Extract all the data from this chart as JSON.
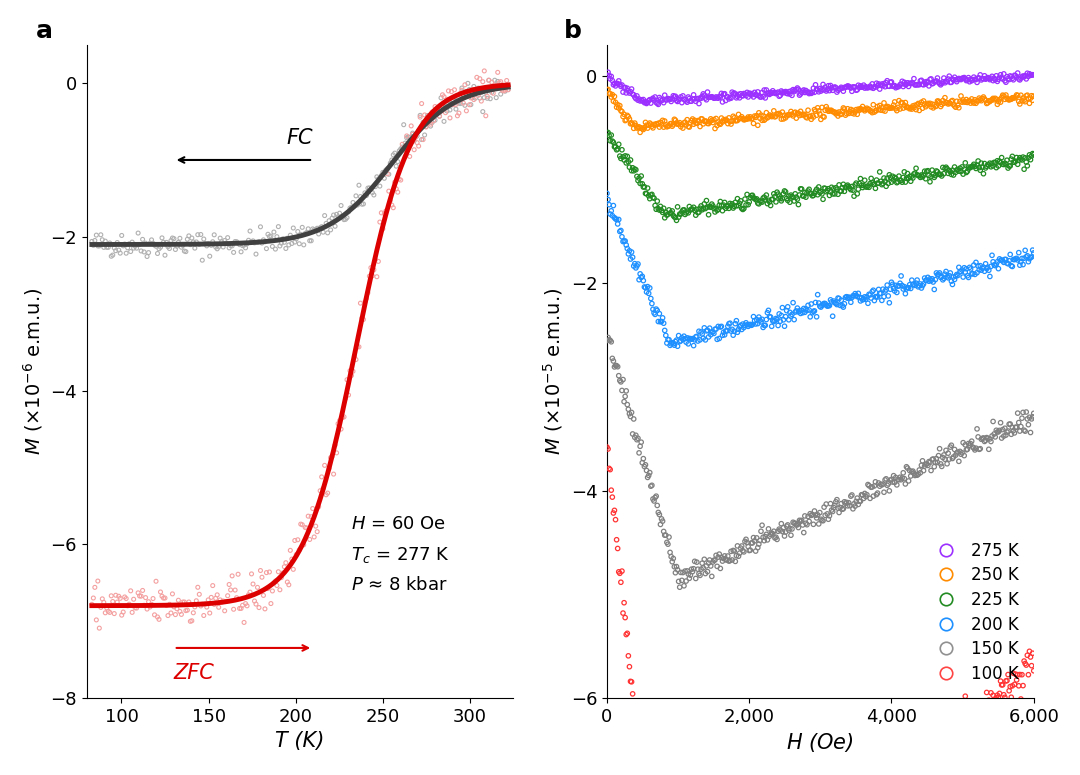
{
  "panel_a": {
    "title": "a",
    "xlabel": "T (K)",
    "ylabel": "M (×10⁻⁶ e.m.u.)",
    "xlim": [
      80,
      325
    ],
    "ylim": [
      -8,
      0.5
    ],
    "yticks": [
      0,
      -2,
      -4,
      -6,
      -8
    ],
    "xticks": [
      100,
      150,
      200,
      250,
      300
    ],
    "fc_color": "#404040",
    "zfc_color": "#dd0000",
    "scatter_fc_color": "#b0b0b0",
    "scatter_zfc_color": "#f4a0a0",
    "annotation_text": "H = 60 Oe\nTₑ = 277 K\nP ≈ 8 kbar",
    "Tc": 277,
    "fc_sat": -2.1,
    "zfc_sat": -6.8
  },
  "panel_b": {
    "title": "b",
    "xlabel": "H (Oe)",
    "ylabel": "M (×10⁻⁵ e.m.u.)",
    "xlim": [
      0,
      6000
    ],
    "ylim": [
      -6,
      0.3
    ],
    "yticks": [
      0,
      -2,
      -4,
      -6
    ],
    "xticks": [
      0,
      2000,
      4000,
      6000
    ],
    "xticklabels": [
      "0",
      "2,000",
      "4,000",
      "6,000"
    ],
    "temperatures": [
      275,
      250,
      225,
      200,
      150,
      100
    ],
    "colors": [
      "#9b30ff",
      "#ff8c00",
      "#228b22",
      "#1e90ff",
      "#808080",
      "#ff3333"
    ],
    "legend_colors": [
      "#9b30ff",
      "#ff8c00",
      "#228b22",
      "#1e90ff",
      "#909090",
      "#ff4444"
    ]
  },
  "background_color": "#ffffff",
  "fig_width": 10.8,
  "fig_height": 7.75
}
